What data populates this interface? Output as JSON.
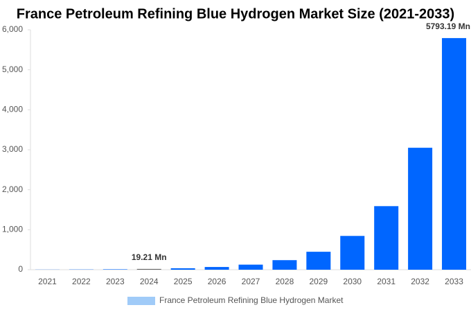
{
  "chart_data": {
    "type": "bar",
    "title": "France Petroleum Refining Blue Hydrogen Market Size (2021-2033)",
    "categories": [
      "2021",
      "2022",
      "2023",
      "2024",
      "2025",
      "2026",
      "2027",
      "2028",
      "2029",
      "2030",
      "2031",
      "2032",
      "2033"
    ],
    "series": [
      {
        "name": "France Petroleum Refining Blue Hydrogen Market",
        "color": "#a0cbf8",
        "values": [
          2.9,
          5.4,
          10.2,
          19.21,
          36,
          68,
          127,
          239,
          449,
          845,
          1590,
          3050,
          5793.19
        ],
        "value_labels": [
          null,
          null,
          null,
          "19.21 Mn",
          null,
          null,
          null,
          null,
          null,
          null,
          null,
          null,
          "5793.19 Mn"
        ]
      }
    ],
    "bar_colors": [
      "#0066ff",
      "#0066ff",
      "#0066ff",
      "#666666",
      "#0066ff",
      "#0066ff",
      "#0066ff",
      "#0066ff",
      "#0066ff",
      "#0066ff",
      "#0066ff",
      "#0066ff",
      "#0066ff"
    ],
    "ylim": [
      0,
      6000
    ],
    "yticks": [
      0,
      {
        "value": 1000,
        "label": "1,000"
      },
      {
        "value": 2000,
        "label": "2,000"
      },
      {
        "value": 3000,
        "label": "3,000"
      },
      {
        "value": 4000,
        "label": "4,000"
      },
      {
        "value": 5000,
        "label": "5,000"
      },
      {
        "value": 6000,
        "label": "6,000"
      }
    ],
    "grid": false
  }
}
